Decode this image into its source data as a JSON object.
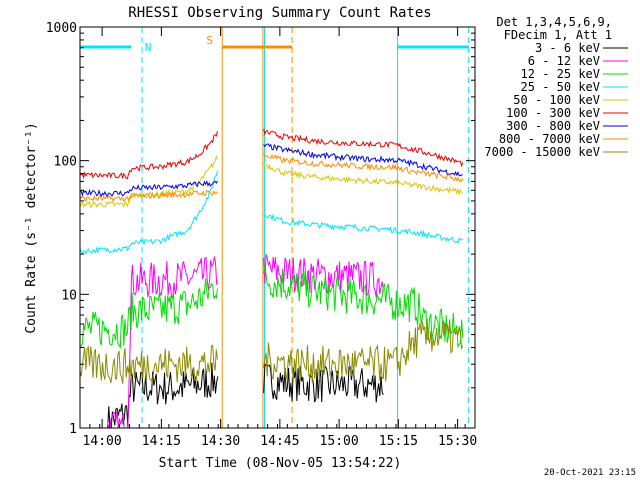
{
  "chart_data": {
    "type": "line",
    "title": "RHESSI Observing Summary Count Rates",
    "xlabel": "Start Time (08-Nov-05 13:54:22)",
    "ylabel": "Count Rate (s⁻¹ detector⁻¹)",
    "x_unit": "minutes after 13:54:22",
    "xlim": [
      0,
      100
    ],
    "ylim": [
      1,
      1000
    ],
    "y_scale": "log",
    "x_ticks": [
      {
        "label": "14:00",
        "value": 5.6
      },
      {
        "label": "14:15",
        "value": 20.6
      },
      {
        "label": "14:30",
        "value": 35.6
      },
      {
        "label": "14:45",
        "value": 50.6
      },
      {
        "label": "15:00",
        "value": 65.6
      },
      {
        "label": "15:15",
        "value": 80.6
      },
      {
        "label": "15:30",
        "value": 95.6
      }
    ],
    "y_ticks": [
      {
        "label": "1",
        "value": 1
      },
      {
        "label": "10",
        "value": 10
      },
      {
        "label": "100",
        "value": 100
      },
      {
        "label": "1000",
        "value": 1000
      }
    ],
    "legend": {
      "placement": "right",
      "header": [
        "Det 1,3,4,5,6,9,",
        "FDecim 1, Att 1"
      ]
    },
    "series": [
      {
        "name": "3 - 6 keV",
        "color": "#000000",
        "segments": [
          {
            "x": [
              7,
              12,
              13,
              18,
              25,
              32,
              35
            ],
            "y": [
              1.1,
              1.3,
              2.0,
              2.0,
              2.0,
              2.2,
              2.3
            ]
          },
          {
            "x": [
              46.5,
              52,
              60,
              68,
              74,
              77
            ],
            "y": [
              2.3,
              2.2,
              2.1,
              2.1,
              2.1,
              2.1
            ]
          }
        ]
      },
      {
        "name": "6 - 12 keV",
        "color": "#ff00ff",
        "segments": [
          {
            "x": [
              7,
              12,
              13,
              20,
              28,
              35
            ],
            "y": [
              1.0,
              1.0,
              12.5,
              12.8,
              13.2,
              14.5
            ]
          },
          {
            "x": [
              46.5,
              52,
              60,
              68,
              74,
              77
            ],
            "y": [
              15.5,
              14.5,
              13.8,
              13.5,
              13.0,
              12.5
            ]
          }
        ]
      },
      {
        "name": "12 - 25 keV",
        "color": "#00dd00",
        "segments": [
          {
            "x": [
              0,
              12,
              13,
              20,
              28,
              32,
              35
            ],
            "y": [
              5.5,
              5.5,
              7.5,
              7.6,
              8.5,
              10,
              12.5
            ]
          },
          {
            "x": [
              46.5,
              52,
              60,
              68,
              74,
              80,
              85,
              87,
              93,
              97
            ],
            "y": [
              13,
              12,
              10.5,
              9.7,
              9.3,
              8.6,
              8.4,
              6.4,
              5.4,
              5.2
            ]
          }
        ]
      },
      {
        "name": "25 - 50 keV",
        "color": "#00e5ff",
        "segments": [
          {
            "x": [
              0,
              12,
              13,
              20,
              27,
              30,
              33,
              35
            ],
            "y": [
              21,
              22,
              24,
              25,
              30,
              40,
              58,
              88
            ]
          },
          {
            "x": [
              46.5,
              52,
              60,
              68,
              74,
              77,
              80,
              85,
              90,
              97
            ],
            "y": [
              40,
              35,
              33,
              32,
              31,
              31,
              30,
              29,
              27,
              25
            ]
          }
        ]
      },
      {
        "name": "50 - 100 keV",
        "color": "#d8c800",
        "segments": [
          {
            "x": [
              0,
              12,
              13,
              20,
              27,
              30,
              33,
              35
            ],
            "y": [
              47,
              47,
              55,
              56,
              59,
              68,
              88,
              108
            ]
          },
          {
            "x": [
              46.5,
              52,
              60,
              68,
              74,
              77,
              80,
              85,
              90,
              97
            ],
            "y": [
              95,
              80,
              75,
              72,
              70,
              69,
              68,
              65,
              62,
              58
            ]
          }
        ]
      },
      {
        "name": "100 - 300 keV",
        "color": "#ee0000",
        "segments": [
          {
            "x": [
              0,
              12,
              13,
              20,
              27,
              30,
              33,
              35
            ],
            "y": [
              78,
              77,
              88,
              90,
              98,
              110,
              135,
              165
            ]
          },
          {
            "x": [
              46.5,
              52,
              60,
              68,
              74,
              77,
              80,
              85,
              90,
              97
            ],
            "y": [
              165,
              150,
              140,
              135,
              133,
              132,
              131,
              120,
              110,
              95
            ]
          }
        ]
      },
      {
        "name": "300 - 800 keV",
        "color": "#0000ee",
        "segments": [
          {
            "x": [
              0,
              12,
              13,
              20,
              27,
              30,
              35
            ],
            "y": [
              57,
              57,
              62,
              63,
              65,
              67,
              68
            ]
          },
          {
            "x": [
              46.5,
              52,
              60,
              68,
              74,
              77,
              80,
              85,
              90,
              97
            ],
            "y": [
              130,
              120,
              110,
              105,
              102,
              102,
              101,
              94,
              86,
              78
            ]
          }
        ]
      },
      {
        "name": "800 - 7000 keV",
        "color": "#ff8c00",
        "segments": [
          {
            "x": [
              0,
              12,
              13,
              20,
              27,
              30,
              35
            ],
            "y": [
              52,
              52,
              54,
              55,
              56,
              57,
              58
            ]
          },
          {
            "x": [
              46.5,
              52,
              60,
              68,
              74,
              77,
              80,
              85,
              90,
              97
            ],
            "y": [
              110,
              100,
              95,
              92,
              90,
              90,
              89,
              82,
              78,
              72
            ]
          }
        ]
      },
      {
        "name": "7000 - 15000 keV",
        "color": "#8b8b00",
        "segments": [
          {
            "x": [
              0,
              10,
              20,
              30,
              35
            ],
            "y": [
              3.0,
              2.9,
              3.0,
              3.0,
              3.1
            ]
          },
          {
            "x": [
              46.5,
              52,
              60,
              68,
              74,
              77,
              80,
              85,
              90,
              97
            ],
            "y": [
              3.2,
              3.1,
              3.0,
              3.0,
              3.0,
              3.0,
              3.0,
              4.5,
              5.0,
              4.5
            ]
          }
        ]
      }
    ],
    "annotations": [
      {
        "label": "N",
        "color": "#00e5ff"
      },
      {
        "label": "S",
        "color": "#ff8c00"
      }
    ],
    "status_bars": [
      {
        "label": "N",
        "color": "#00e5ff",
        "segments": [
          [
            0,
            13
          ],
          [
            80.4,
            98.4
          ]
        ]
      },
      {
        "label": "S",
        "color": "#ff8c00",
        "segments": [
          [
            36,
            53.7
          ]
        ]
      }
    ],
    "markers": {
      "solid": [
        {
          "x": 0,
          "color": "#00e5ff"
        },
        {
          "x": 36,
          "color": "#ff8c00"
        },
        {
          "x": 46.3,
          "color": "#ff8c00"
        },
        {
          "x": 46.7,
          "color": "#00e5ff"
        },
        {
          "x": 80.4,
          "color": "#00e5ff"
        }
      ],
      "dashed": [
        {
          "x": 15.7,
          "color": "#00e5ff"
        },
        {
          "x": 53.7,
          "color": "#ff8c00"
        },
        {
          "x": 98.4,
          "color": "#00e5ff"
        }
      ]
    }
  },
  "footer": {
    "timestamp": "20-Oct-2021 23:15"
  }
}
